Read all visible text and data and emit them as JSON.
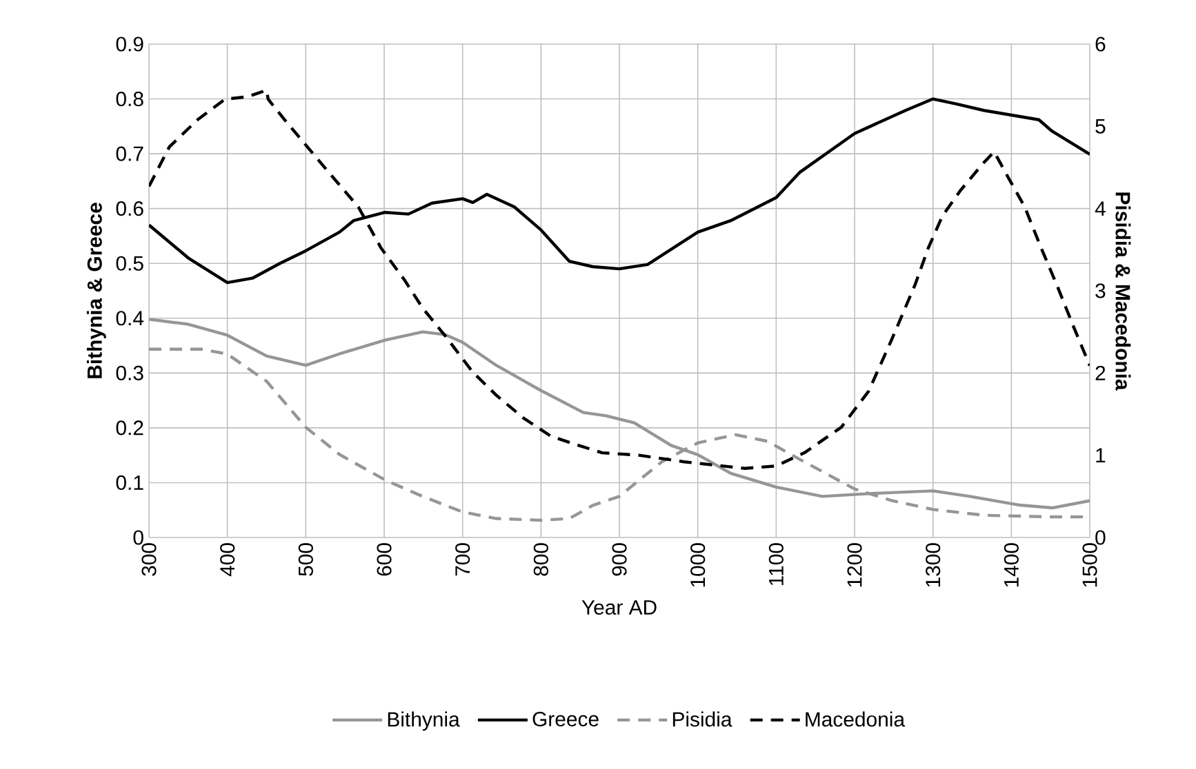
{
  "chart_data": {
    "type": "line",
    "xlabel": "Year AD",
    "ylabel": "Bithynia & Greece",
    "y2label": "Pisidia & Macedonia",
    "series": [
      {
        "name": "Bithynia",
        "color": "#969696",
        "line_style": "solid",
        "x": [
          300,
          350,
          400,
          450,
          500,
          543,
          601,
          649,
          678,
          700,
          743,
          800,
          854,
          883,
          919,
          966,
          1000,
          1042,
          1100,
          1159,
          1218,
          1300,
          1347,
          1411,
          1452,
          1500
        ],
        "values": [
          0.398,
          0.389,
          0.369,
          0.331,
          0.314,
          0.335,
          0.36,
          0.375,
          0.37,
          0.356,
          0.314,
          0.268,
          0.228,
          0.222,
          0.209,
          0.168,
          0.151,
          0.117,
          0.092,
          0.075,
          0.08,
          0.085,
          0.075,
          0.059,
          0.054,
          0.067
        ]
      },
      {
        "name": "Greece",
        "color": "#000000",
        "line_style": "solid",
        "x": [
          300,
          350,
          400,
          432,
          467,
          500,
          543,
          561,
          601,
          631,
          661,
          700,
          713,
          731,
          766,
          800,
          836,
          866,
          900,
          936,
          1000,
          1042,
          1100,
          1130,
          1200,
          1265,
          1300,
          1329,
          1365,
          1435,
          1452,
          1500
        ],
        "values": [
          0.57,
          0.51,
          0.465,
          0.473,
          0.5,
          0.523,
          0.557,
          0.578,
          0.593,
          0.59,
          0.61,
          0.618,
          0.611,
          0.626,
          0.603,
          0.561,
          0.504,
          0.494,
          0.49,
          0.498,
          0.557,
          0.578,
          0.62,
          0.666,
          0.737,
          0.779,
          0.8,
          0.791,
          0.779,
          0.762,
          0.741,
          0.699
        ]
      },
      {
        "name": "Pisidia",
        "color": "#969696",
        "line_style": "dashed",
        "axis": "y2",
        "x": [
          300,
          367,
          400,
          450,
          500,
          543,
          601,
          649,
          700,
          743,
          800,
          836,
          866,
          900,
          954,
          1000,
          1048,
          1089,
          1130,
          1200,
          1247,
          1300,
          1365,
          1452,
          1500
        ],
        "values": [
          2.29,
          2.29,
          2.23,
          1.9,
          1.34,
          1.01,
          0.7,
          0.5,
          0.31,
          0.23,
          0.21,
          0.23,
          0.39,
          0.5,
          0.92,
          1.15,
          1.25,
          1.17,
          0.95,
          0.59,
          0.45,
          0.34,
          0.27,
          0.25,
          0.25
        ]
      },
      {
        "name": "Macedonia",
        "color": "#000000",
        "line_style": "dashed",
        "axis": "y2",
        "x": [
          300,
          326,
          362,
          397,
          426,
          450,
          452,
          473,
          502,
          532,
          567,
          596,
          626,
          649,
          678,
          713,
          743,
          778,
          813,
          848,
          878,
          925,
          983,
          1060,
          1100,
          1136,
          1183,
          1218,
          1247,
          1277,
          1294,
          1312,
          1335,
          1364,
          1378,
          1397,
          1417,
          1438,
          1458,
          1479,
          1500
        ],
        "values": [
          4.27,
          4.75,
          5.08,
          5.33,
          5.36,
          5.44,
          5.33,
          5.08,
          4.75,
          4.41,
          4.02,
          3.52,
          3.13,
          2.79,
          2.45,
          2.01,
          1.73,
          1.45,
          1.23,
          1.12,
          1.03,
          1.0,
          0.92,
          0.84,
          0.87,
          1.03,
          1.34,
          1.78,
          2.4,
          3.07,
          3.52,
          3.91,
          4.22,
          4.55,
          4.69,
          4.36,
          4.02,
          3.52,
          3.07,
          2.57,
          2.09
        ]
      }
    ],
    "xlim": [
      300,
      1500
    ],
    "xticks": [
      300,
      400,
      500,
      600,
      700,
      800,
      900,
      1000,
      1100,
      1200,
      1300,
      1400,
      1500
    ],
    "ylim": [
      0,
      0.9
    ],
    "yticks": [
      0,
      0.1,
      0.2,
      0.3,
      0.4,
      0.5,
      0.6,
      0.7,
      0.8,
      0.9
    ],
    "y2lim": [
      0,
      6
    ],
    "y2ticks": [
      0,
      1,
      2,
      3,
      4,
      5,
      6
    ],
    "grid": true,
    "legend": "bottom",
    "marker": "none"
  }
}
